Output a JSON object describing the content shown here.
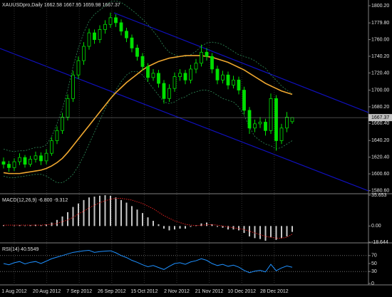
{
  "header": "XAUUSDpro,Daily  1662.58 1667.95 1659.98 1667.37",
  "time_axis": [
    "1 Aug 2012",
    "20 Aug 2012",
    "7 Sep 2012",
    "26 Sep 2012",
    "15 Oct 2012",
    "2 Nov 2012",
    "21 Nov 2012",
    "10 Dec 2012",
    "28 Dec 2012"
  ],
  "chart_data": [
    {
      "type": "candlestick",
      "up_color": "#00e000",
      "down_color": "#00e000",
      "open": [
        1615,
        1612,
        1608,
        1615,
        1620,
        1612,
        1618,
        1622,
        1616,
        1625,
        1640,
        1652,
        1668,
        1690,
        1718,
        1735,
        1752,
        1768,
        1760,
        1772,
        1778,
        1786,
        1780,
        1770,
        1762,
        1750,
        1740,
        1728,
        1715,
        1720,
        1708,
        1690,
        1702,
        1716,
        1720,
        1712,
        1725,
        1732,
        1745,
        1740,
        1725,
        1712,
        1718,
        1706,
        1712,
        1700,
        1676,
        1655,
        1660,
        1662,
        1652,
        1690,
        1640,
        1655,
        1662.58
      ],
      "high": [
        1620,
        1616,
        1619,
        1625,
        1623,
        1622,
        1627,
        1626,
        1630,
        1644,
        1657,
        1673,
        1695,
        1723,
        1740,
        1757,
        1773,
        1772,
        1777,
        1783,
        1792,
        1790,
        1784,
        1774,
        1766,
        1754,
        1744,
        1732,
        1725,
        1724,
        1712,
        1707,
        1721,
        1725,
        1724,
        1730,
        1737,
        1754,
        1750,
        1744,
        1729,
        1723,
        1722,
        1717,
        1716,
        1704,
        1680,
        1665,
        1668,
        1666,
        1696,
        1694,
        1660,
        1674,
        1667.95
      ],
      "low": [
        1607,
        1603,
        1604,
        1611,
        1608,
        1609,
        1614,
        1611,
        1612,
        1622,
        1636,
        1648,
        1664,
        1686,
        1713,
        1730,
        1748,
        1755,
        1756,
        1767,
        1774,
        1775,
        1765,
        1757,
        1745,
        1735,
        1723,
        1710,
        1711,
        1703,
        1684,
        1686,
        1698,
        1711,
        1707,
        1708,
        1720,
        1728,
        1735,
        1720,
        1707,
        1708,
        1701,
        1702,
        1695,
        1671,
        1648,
        1650,
        1655,
        1646,
        1648,
        1628,
        1636,
        1650,
        1659.98
      ],
      "close": [
        1612,
        1608,
        1615,
        1620,
        1612,
        1618,
        1622,
        1616,
        1625,
        1640,
        1652,
        1668,
        1690,
        1718,
        1735,
        1752,
        1768,
        1760,
        1772,
        1778,
        1786,
        1780,
        1770,
        1762,
        1750,
        1740,
        1728,
        1715,
        1720,
        1708,
        1690,
        1702,
        1716,
        1720,
        1712,
        1725,
        1732,
        1745,
        1740,
        1725,
        1712,
        1718,
        1706,
        1712,
        1700,
        1676,
        1655,
        1660,
        1662,
        1652,
        1690,
        1640,
        1655,
        1668,
        1667.37
      ],
      "series": [
        {
          "color": "#2e8b57",
          "style": "dashed",
          "values": [
            1630,
            1628,
            1627,
            1628,
            1628,
            1630,
            1632,
            1632,
            1635,
            1645,
            1660,
            1678,
            1700,
            1728,
            1750,
            1768,
            1782,
            1790,
            1795,
            1800,
            1805,
            1806,
            1804,
            1800,
            1795,
            1790,
            1784,
            1778,
            1770,
            1762,
            1752,
            1745,
            1742,
            1740,
            1740,
            1742,
            1746,
            1752,
            1756,
            1757,
            1756,
            1754,
            1750,
            1746,
            1742,
            1740,
            1738,
            1735,
            1730,
            1726,
            1718,
            1712,
            1705,
            1700,
            1696
          ]
        },
        {
          "color": "#2e8b57",
          "style": "dashed",
          "values": [
            1598,
            1596,
            1596,
            1597,
            1598,
            1599,
            1600,
            1600,
            1598,
            1594,
            1590,
            1590,
            1594,
            1600,
            1610,
            1622,
            1636,
            1650,
            1664,
            1678,
            1690,
            1700,
            1710,
            1718,
            1722,
            1722,
            1718,
            1710,
            1702,
            1694,
            1686,
            1684,
            1686,
            1690,
            1692,
            1696,
            1698,
            1700,
            1700,
            1698,
            1694,
            1690,
            1688,
            1686,
            1680,
            1670,
            1656,
            1645,
            1640,
            1636,
            1634,
            1630,
            1632,
            1636,
            1640
          ]
        },
        {
          "color": "#f0a830",
          "style": "solid",
          "values": [
            1602,
            1601,
            1601,
            1601,
            1602,
            1603,
            1604,
            1605,
            1607,
            1610,
            1614,
            1619,
            1626,
            1634,
            1642,
            1650,
            1658,
            1666,
            1674,
            1682,
            1690,
            1697,
            1703,
            1709,
            1714,
            1719,
            1724,
            1728,
            1731,
            1734,
            1736,
            1738,
            1739,
            1740,
            1741,
            1741,
            1741,
            1741,
            1740,
            1739,
            1737,
            1735,
            1733,
            1730,
            1727,
            1724,
            1720,
            1716,
            1712,
            1708,
            1705,
            1702,
            1699,
            1697,
            1695
          ]
        }
      ],
      "last_price": 1667.37,
      "ylim": [
        1577,
        1807
      ],
      "yticks": [
        {
          "value": 1800.2,
          "label": "1800.20"
        },
        {
          "value": 1779.8,
          "label": "1779.80"
        },
        {
          "value": 1760,
          "label": "1760.00"
        },
        {
          "value": 1740.2,
          "label": "1740.20"
        },
        {
          "value": 1720.4,
          "label": "1720.40"
        },
        {
          "value": 1700,
          "label": "1700.00"
        },
        {
          "value": 1680.2,
          "label": "1680.20"
        },
        {
          "value": 1660.4,
          "label": "1660.40"
        },
        {
          "value": 1640.2,
          "label": "1640.20"
        },
        {
          "value": 1620.4,
          "label": "1620.40"
        },
        {
          "value": 1600.6,
          "label": "1600.60"
        },
        {
          "value": 1580.6,
          "label": "1580.60"
        }
      ]
    },
    {
      "type": "macd",
      "title": "MACD(12,26,9) -6.800 -9.312",
      "color": "#c8c8c8",
      "signal_color": "#e02020",
      "values": [
        1,
        0,
        0.5,
        1,
        0.5,
        1,
        1.5,
        1,
        2,
        4,
        7,
        11,
        16,
        22,
        26,
        30,
        33,
        34,
        35,
        35.6,
        35,
        33,
        30,
        27,
        23,
        19,
        15,
        10,
        6,
        2,
        -3,
        -5,
        -4,
        -3,
        -3,
        -1,
        1,
        3,
        4,
        2,
        -1,
        -2,
        -4,
        -4,
        -5,
        -8,
        -12,
        -14,
        -15,
        -17,
        -13,
        -16,
        -14,
        -12,
        -6.8
      ],
      "signal": [
        1,
        1,
        1,
        1,
        1,
        1,
        1,
        1,
        1.5,
        2,
        3,
        5,
        7,
        10,
        14,
        17,
        21,
        24,
        27,
        29,
        31,
        32,
        32,
        31,
        30,
        28,
        26,
        23,
        20,
        16,
        12,
        9,
        6,
        4,
        2,
        1,
        0.5,
        1,
        1.5,
        1.5,
        1,
        0,
        -1,
        -2,
        -3,
        -4,
        -6,
        -8,
        -10,
        -12,
        -13,
        -14,
        -14,
        -13,
        -9.312
      ],
      "ylim": [
        -18.644,
        35.653
      ],
      "yticks": [
        35.653,
        {
          "value": 0,
          "label": "0.00"
        },
        -18.644
      ]
    },
    {
      "type": "line",
      "title": "RSI(14) 40.5549",
      "color": "#1e90ff",
      "values": [
        50,
        47,
        52,
        55,
        49,
        53,
        55,
        50,
        56,
        62,
        66,
        70,
        74,
        78,
        80,
        82,
        83,
        78,
        80,
        81,
        82,
        77,
        70,
        65,
        58,
        53,
        47,
        42,
        45,
        40,
        35,
        43,
        50,
        52,
        48,
        54,
        57,
        62,
        58,
        50,
        45,
        48,
        43,
        46,
        41,
        33,
        27,
        31,
        33,
        29,
        48,
        32,
        39,
        44,
        40.5549
      ],
      "levels": [
        70,
        30
      ],
      "ylim": [
        0,
        100
      ],
      "yticks": [
        70,
        50,
        30,
        0
      ]
    }
  ]
}
